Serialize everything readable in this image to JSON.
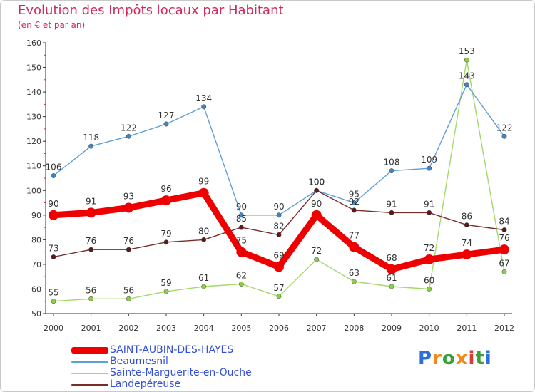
{
  "header": {
    "title": "Evolution des Impôts locaux par Habitant",
    "subtitle": "(en € et par an)"
  },
  "logo": {
    "letters": [
      "P",
      "r",
      "o",
      "x",
      "i",
      "t",
      "i"
    ],
    "colors": [
      "#2d6fd6",
      "#f08a1c",
      "#3aa13a",
      "#f08a1c",
      "#d93a3a",
      "#3aa13a",
      "#2d6fd6"
    ]
  },
  "chart_data": {
    "type": "line",
    "title": "Evolution des Impôts locaux par Habitant",
    "subtitle": "(en € et par an)",
    "xlabel": "",
    "ylabel": "",
    "x": [
      "2000",
      "2001",
      "2002",
      "2003",
      "2004",
      "2005",
      "2006",
      "2007",
      "2008",
      "2009",
      "2010",
      "2011",
      "2012"
    ],
    "ylim": [
      50,
      160
    ],
    "yticks": [
      "50",
      "60",
      "70",
      "80",
      "90",
      "100",
      "110",
      "120",
      "130",
      "140",
      "150",
      "160"
    ],
    "grid": false,
    "legend_position": "bottom-left",
    "series": [
      {
        "name": "Sainte-Marguerite-en-Ouche",
        "color": "#a3d96b",
        "dot": "#8ccc4a",
        "thick": false,
        "values": [
          55,
          56,
          56,
          59,
          61,
          62,
          57,
          72,
          63,
          61,
          60,
          153,
          67
        ],
        "labels": [
          "55",
          "56",
          "56",
          "59",
          "61",
          "62",
          "57",
          "72",
          "63",
          "61",
          "60",
          "153",
          "67"
        ]
      },
      {
        "name": "Beaumesnil",
        "color": "#5e9fd6",
        "dot": "#3d86c9",
        "thick": false,
        "values": [
          106,
          118,
          122,
          127,
          134,
          90,
          90,
          100,
          95,
          108,
          109,
          143,
          122
        ],
        "labels": [
          "106",
          "118",
          "122",
          "127",
          "134",
          "90",
          "90",
          "100",
          "95",
          "108",
          "109",
          "143",
          "122"
        ]
      },
      {
        "name": "Landepéreuse",
        "color": "#7a2c2c",
        "dot": "#5a1a1a",
        "thick": false,
        "values": [
          73,
          76,
          76,
          79,
          80,
          85,
          82,
          100,
          92,
          91,
          91,
          86,
          84
        ],
        "labels": [
          "73",
          "76",
          "76",
          "79",
          "80",
          "85",
          "82",
          "100",
          "92",
          "91",
          "91",
          "86",
          "84"
        ]
      },
      {
        "name": "SAINT-AUBIN-DES-HAYES",
        "color": "#ee0000",
        "dot": "#ee0000",
        "thick": true,
        "values": [
          90,
          91,
          93,
          96,
          99,
          75,
          69,
          90,
          77,
          68,
          72,
          74,
          76
        ],
        "labels": [
          "90",
          "91",
          "93",
          "96",
          "99",
          "75",
          "69",
          "90",
          "77",
          "68",
          "72",
          "74",
          "76"
        ]
      }
    ],
    "legend": [
      "SAINT-AUBIN-DES-HAYES",
      "Beaumesnil",
      "Sainte-Marguerite-en-Ouche",
      "Landepéreuse"
    ]
  }
}
